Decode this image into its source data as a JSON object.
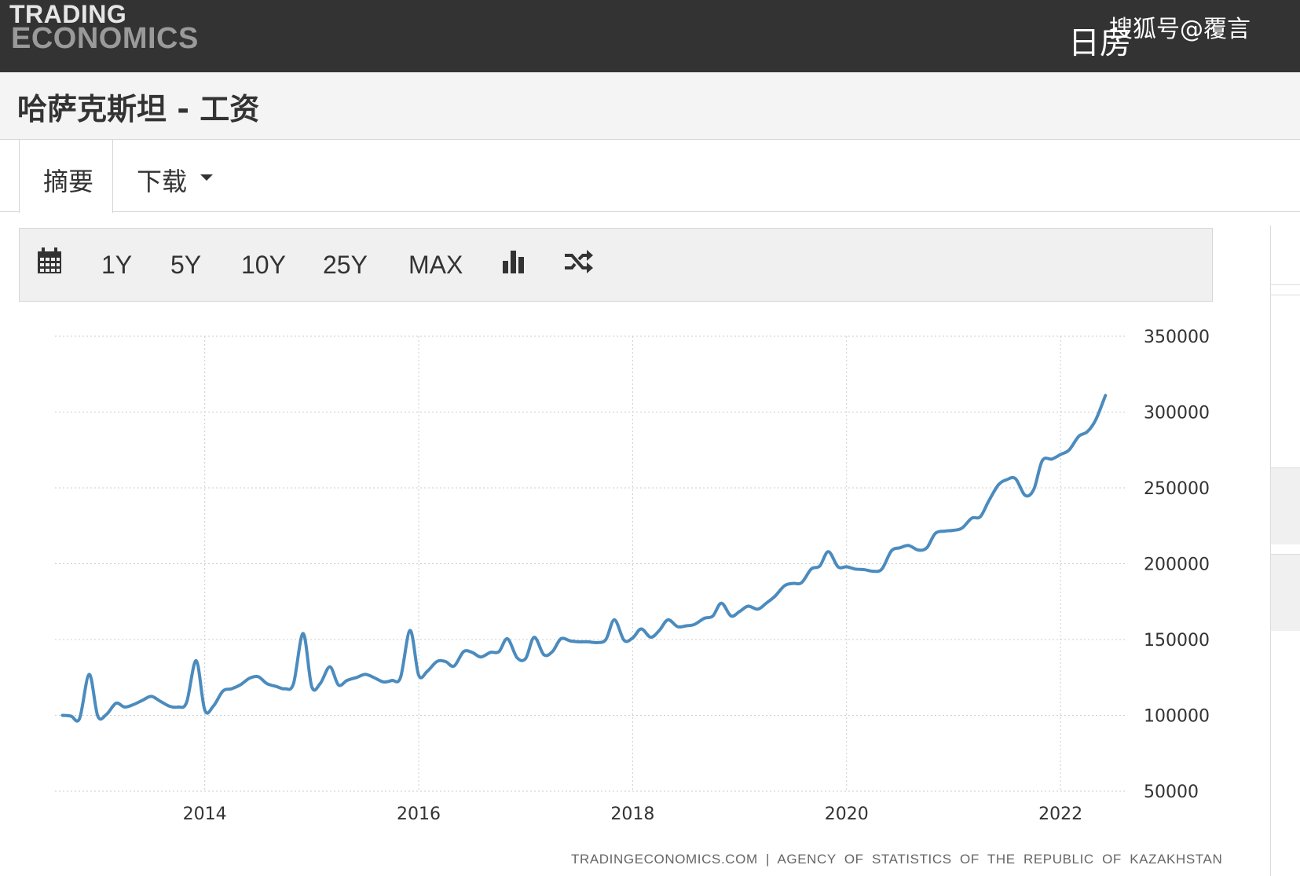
{
  "header": {
    "logo_line1": "TRADING",
    "logo_line2": "ECONOMICS",
    "watermark": "搜狐号@覆言",
    "watermark_sub": "日房"
  },
  "page": {
    "title": "哈萨克斯坦 - 工资"
  },
  "tabs": {
    "summary": "摘要",
    "download": "下载"
  },
  "toolbar": {
    "calendar_icon": "calendar-icon",
    "ranges": [
      "1Y",
      "5Y",
      "10Y",
      "25Y",
      "MAX"
    ],
    "chart_type_icon": "bar-chart-icon",
    "compare_icon": "shuffle-icon"
  },
  "colors": {
    "line": "#4b8bbe",
    "grid": "#cccccc",
    "topbar": "#333333"
  },
  "source_text": "TRADINGECONOMICS.COM | AGENCY OF STATISTICS OF THE REPUBLIC OF KAZAKHSTAN",
  "chart_data": {
    "type": "line",
    "title": "",
    "xlabel": "",
    "ylabel": "",
    "x_ticks": [
      "2014",
      "2016",
      "2018",
      "2020",
      "2022"
    ],
    "y_ticks": [
      "350000",
      "300000",
      "250000",
      "200000",
      "150000",
      "100000",
      "50000"
    ],
    "ylim": [
      50000,
      350000
    ],
    "xlim": [
      2012.6,
      2022.55
    ],
    "grid": true,
    "y_axis_side": "right",
    "series": [
      {
        "name": "",
        "points": [
          [
            2012.67,
            100000
          ],
          [
            2012.75,
            99500
          ],
          [
            2012.83,
            98000
          ],
          [
            2012.92,
            127000
          ],
          [
            2013.0,
            99500
          ],
          [
            2013.08,
            100500
          ],
          [
            2013.17,
            108000
          ],
          [
            2013.25,
            105500
          ],
          [
            2013.33,
            107000
          ],
          [
            2013.42,
            110000
          ],
          [
            2013.5,
            112500
          ],
          [
            2013.58,
            109500
          ],
          [
            2013.67,
            106000
          ],
          [
            2013.75,
            105500
          ],
          [
            2013.83,
            108500
          ],
          [
            2013.92,
            136000
          ],
          [
            2014.0,
            103500
          ],
          [
            2014.08,
            106000
          ],
          [
            2014.17,
            116000
          ],
          [
            2014.25,
            117500
          ],
          [
            2014.33,
            120000
          ],
          [
            2014.42,
            124500
          ],
          [
            2014.5,
            125500
          ],
          [
            2014.58,
            121000
          ],
          [
            2014.67,
            119000
          ],
          [
            2014.75,
            117500
          ],
          [
            2014.83,
            121000
          ],
          [
            2014.92,
            154000
          ],
          [
            2015.0,
            119000
          ],
          [
            2015.08,
            121000
          ],
          [
            2015.17,
            132000
          ],
          [
            2015.25,
            120000
          ],
          [
            2015.33,
            123000
          ],
          [
            2015.42,
            125000
          ],
          [
            2015.5,
            127000
          ],
          [
            2015.58,
            125000
          ],
          [
            2015.67,
            122000
          ],
          [
            2015.75,
            123000
          ],
          [
            2015.83,
            125000
          ],
          [
            2015.92,
            156000
          ],
          [
            2016.0,
            126500
          ],
          [
            2016.08,
            129000
          ],
          [
            2016.17,
            135500
          ],
          [
            2016.25,
            135500
          ],
          [
            2016.33,
            132500
          ],
          [
            2016.42,
            142000
          ],
          [
            2016.5,
            141500
          ],
          [
            2016.58,
            138500
          ],
          [
            2016.67,
            141500
          ],
          [
            2016.75,
            142000
          ],
          [
            2016.83,
            150500
          ],
          [
            2016.92,
            138000
          ],
          [
            2017.0,
            137500
          ],
          [
            2017.08,
            151500
          ],
          [
            2017.17,
            140000
          ],
          [
            2017.25,
            142000
          ],
          [
            2017.33,
            150500
          ],
          [
            2017.42,
            149000
          ],
          [
            2017.5,
            148500
          ],
          [
            2017.58,
            148500
          ],
          [
            2017.67,
            148000
          ],
          [
            2017.75,
            150000
          ],
          [
            2017.83,
            163000
          ],
          [
            2017.92,
            149500
          ],
          [
            2018.0,
            151000
          ],
          [
            2018.08,
            157000
          ],
          [
            2018.17,
            151500
          ],
          [
            2018.25,
            156000
          ],
          [
            2018.33,
            163000
          ],
          [
            2018.42,
            158500
          ],
          [
            2018.5,
            159000
          ],
          [
            2018.58,
            160000
          ],
          [
            2018.67,
            164000
          ],
          [
            2018.75,
            165500
          ],
          [
            2018.83,
            174000
          ],
          [
            2018.92,
            165500
          ],
          [
            2019.0,
            168500
          ],
          [
            2019.08,
            172000
          ],
          [
            2019.17,
            170000
          ],
          [
            2019.25,
            174000
          ],
          [
            2019.33,
            178500
          ],
          [
            2019.42,
            185500
          ],
          [
            2019.5,
            187000
          ],
          [
            2019.58,
            187500
          ],
          [
            2019.67,
            196500
          ],
          [
            2019.75,
            198500
          ],
          [
            2019.83,
            208000
          ],
          [
            2019.92,
            198000
          ],
          [
            2020.0,
            198000
          ],
          [
            2020.08,
            196500
          ],
          [
            2020.17,
            196000
          ],
          [
            2020.25,
            195000
          ],
          [
            2020.33,
            196500
          ],
          [
            2020.42,
            208500
          ],
          [
            2020.5,
            210500
          ],
          [
            2020.58,
            212000
          ],
          [
            2020.67,
            209000
          ],
          [
            2020.75,
            210500
          ],
          [
            2020.83,
            220000
          ],
          [
            2020.92,
            221500
          ],
          [
            2021.0,
            222000
          ],
          [
            2021.08,
            223500
          ],
          [
            2021.17,
            230000
          ],
          [
            2021.25,
            231000
          ],
          [
            2021.33,
            241500
          ],
          [
            2021.42,
            252000
          ],
          [
            2021.5,
            255500
          ],
          [
            2021.58,
            256000
          ],
          [
            2021.67,
            245000
          ],
          [
            2021.75,
            249000
          ],
          [
            2021.83,
            268000
          ],
          [
            2021.92,
            269000
          ],
          [
            2022.0,
            272000
          ],
          [
            2022.08,
            275000
          ],
          [
            2022.17,
            284000
          ],
          [
            2022.25,
            287000
          ],
          [
            2022.33,
            295000
          ],
          [
            2022.42,
            311000
          ]
        ]
      }
    ]
  }
}
